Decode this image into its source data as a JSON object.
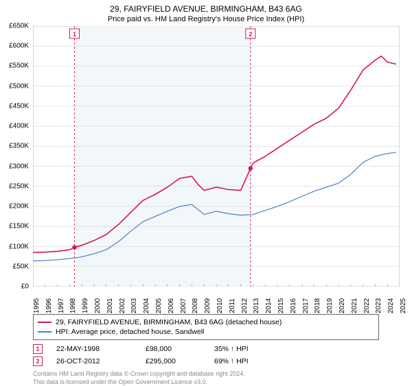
{
  "title": "29, FAIRYFIELD AVENUE, BIRMINGHAM, B43 6AG",
  "subtitle": "Price paid vs. HM Land Registry's House Price Index (HPI)",
  "chart": {
    "type": "line",
    "background_color": "#ffffff",
    "shaded_region_color": "#f2f7fa",
    "grid_color": "#cccccc",
    "y": {
      "min": 0,
      "max": 650000,
      "step": 50000,
      "prefix": "£",
      "suffix": "K",
      "tick_labels": [
        "£0",
        "£50K",
        "£100K",
        "£150K",
        "£200K",
        "£250K",
        "£300K",
        "£350K",
        "£400K",
        "£450K",
        "£500K",
        "£550K",
        "£600K",
        "£650K"
      ]
    },
    "x": {
      "min": 1995,
      "max": 2025,
      "step": 1,
      "tick_labels": [
        "1995",
        "1996",
        "1997",
        "1998",
        "1999",
        "2000",
        "2001",
        "2002",
        "2003",
        "2004",
        "2005",
        "2006",
        "2007",
        "2008",
        "2009",
        "2010",
        "2011",
        "2012",
        "2013",
        "2014",
        "2015",
        "2016",
        "2017",
        "2018",
        "2019",
        "2020",
        "2021",
        "2022",
        "2023",
        "2024",
        "2025"
      ]
    },
    "shaded_x_range": [
      1998.4,
      2012.8
    ],
    "vlines": [
      {
        "x": 1998.4,
        "color": "#d4145a",
        "dash": "3,3"
      },
      {
        "x": 2012.8,
        "color": "#d4145a",
        "dash": "3,3"
      }
    ],
    "markers": [
      {
        "n": "1",
        "x": 1998.4,
        "y_label_top": true,
        "color": "#d4145a",
        "point_y": 98000
      },
      {
        "n": "2",
        "x": 2012.8,
        "y_label_top": true,
        "color": "#d4145a",
        "point_y": 295000
      }
    ],
    "series": [
      {
        "id": "subject",
        "label": "29, FAIRYFIELD AVENUE, BIRMINGHAM, B43 6AG (detached house)",
        "color": "#d4145a",
        "width": 1.6,
        "data": [
          [
            1995,
            85000
          ],
          [
            1996,
            86000
          ],
          [
            1997,
            88000
          ],
          [
            1998,
            92000
          ],
          [
            1998.4,
            98000
          ],
          [
            1999,
            103000
          ],
          [
            2000,
            115000
          ],
          [
            2001,
            130000
          ],
          [
            2002,
            155000
          ],
          [
            2003,
            185000
          ],
          [
            2004,
            215000
          ],
          [
            2005,
            230000
          ],
          [
            2006,
            248000
          ],
          [
            2007,
            270000
          ],
          [
            2008,
            275000
          ],
          [
            2008.5,
            255000
          ],
          [
            2009,
            240000
          ],
          [
            2010,
            248000
          ],
          [
            2011,
            242000
          ],
          [
            2012,
            240000
          ],
          [
            2012.8,
            295000
          ],
          [
            2013,
            308000
          ],
          [
            2014,
            325000
          ],
          [
            2015,
            345000
          ],
          [
            2016,
            365000
          ],
          [
            2017,
            385000
          ],
          [
            2018,
            405000
          ],
          [
            2019,
            420000
          ],
          [
            2020,
            445000
          ],
          [
            2021,
            490000
          ],
          [
            2022,
            540000
          ],
          [
            2023,
            565000
          ],
          [
            2023.5,
            575000
          ],
          [
            2024,
            560000
          ],
          [
            2024.7,
            555000
          ]
        ]
      },
      {
        "id": "hpi",
        "label": "HPI: Average price, detached house, Sandwell",
        "color": "#4a7fbf",
        "width": 1.2,
        "data": [
          [
            1995,
            64000
          ],
          [
            1996,
            65000
          ],
          [
            1997,
            67000
          ],
          [
            1998,
            70000
          ],
          [
            1999,
            74000
          ],
          [
            2000,
            82000
          ],
          [
            2001,
            92000
          ],
          [
            2002,
            112000
          ],
          [
            2003,
            138000
          ],
          [
            2004,
            162000
          ],
          [
            2005,
            175000
          ],
          [
            2006,
            188000
          ],
          [
            2007,
            200000
          ],
          [
            2008,
            205000
          ],
          [
            2009,
            180000
          ],
          [
            2010,
            188000
          ],
          [
            2011,
            182000
          ],
          [
            2012,
            178000
          ],
          [
            2013,
            180000
          ],
          [
            2014,
            190000
          ],
          [
            2015,
            200000
          ],
          [
            2016,
            212000
          ],
          [
            2017,
            225000
          ],
          [
            2018,
            238000
          ],
          [
            2019,
            248000
          ],
          [
            2020,
            258000
          ],
          [
            2021,
            280000
          ],
          [
            2022,
            310000
          ],
          [
            2023,
            325000
          ],
          [
            2024,
            332000
          ],
          [
            2024.7,
            335000
          ]
        ]
      }
    ]
  },
  "legend": {
    "items": [
      {
        "color": "#d4145a",
        "label": "29, FAIRYFIELD AVENUE, BIRMINGHAM, B43 6AG (detached house)"
      },
      {
        "color": "#4a7fbf",
        "label": "HPI: Average price, detached house, Sandwell"
      }
    ]
  },
  "sales": [
    {
      "n": "1",
      "date": "22-MAY-1998",
      "price": "£98,000",
      "pct": "35% ↑ HPI",
      "color": "#d4145a"
    },
    {
      "n": "2",
      "date": "26-OCT-2012",
      "price": "£295,000",
      "pct": "69% ↑ HPI",
      "color": "#d4145a"
    }
  ],
  "footer": {
    "line1": "Contains HM Land Registry data © Crown copyright and database right 2024.",
    "line2": "This data is licensed under the Open Government Licence v3.0."
  }
}
